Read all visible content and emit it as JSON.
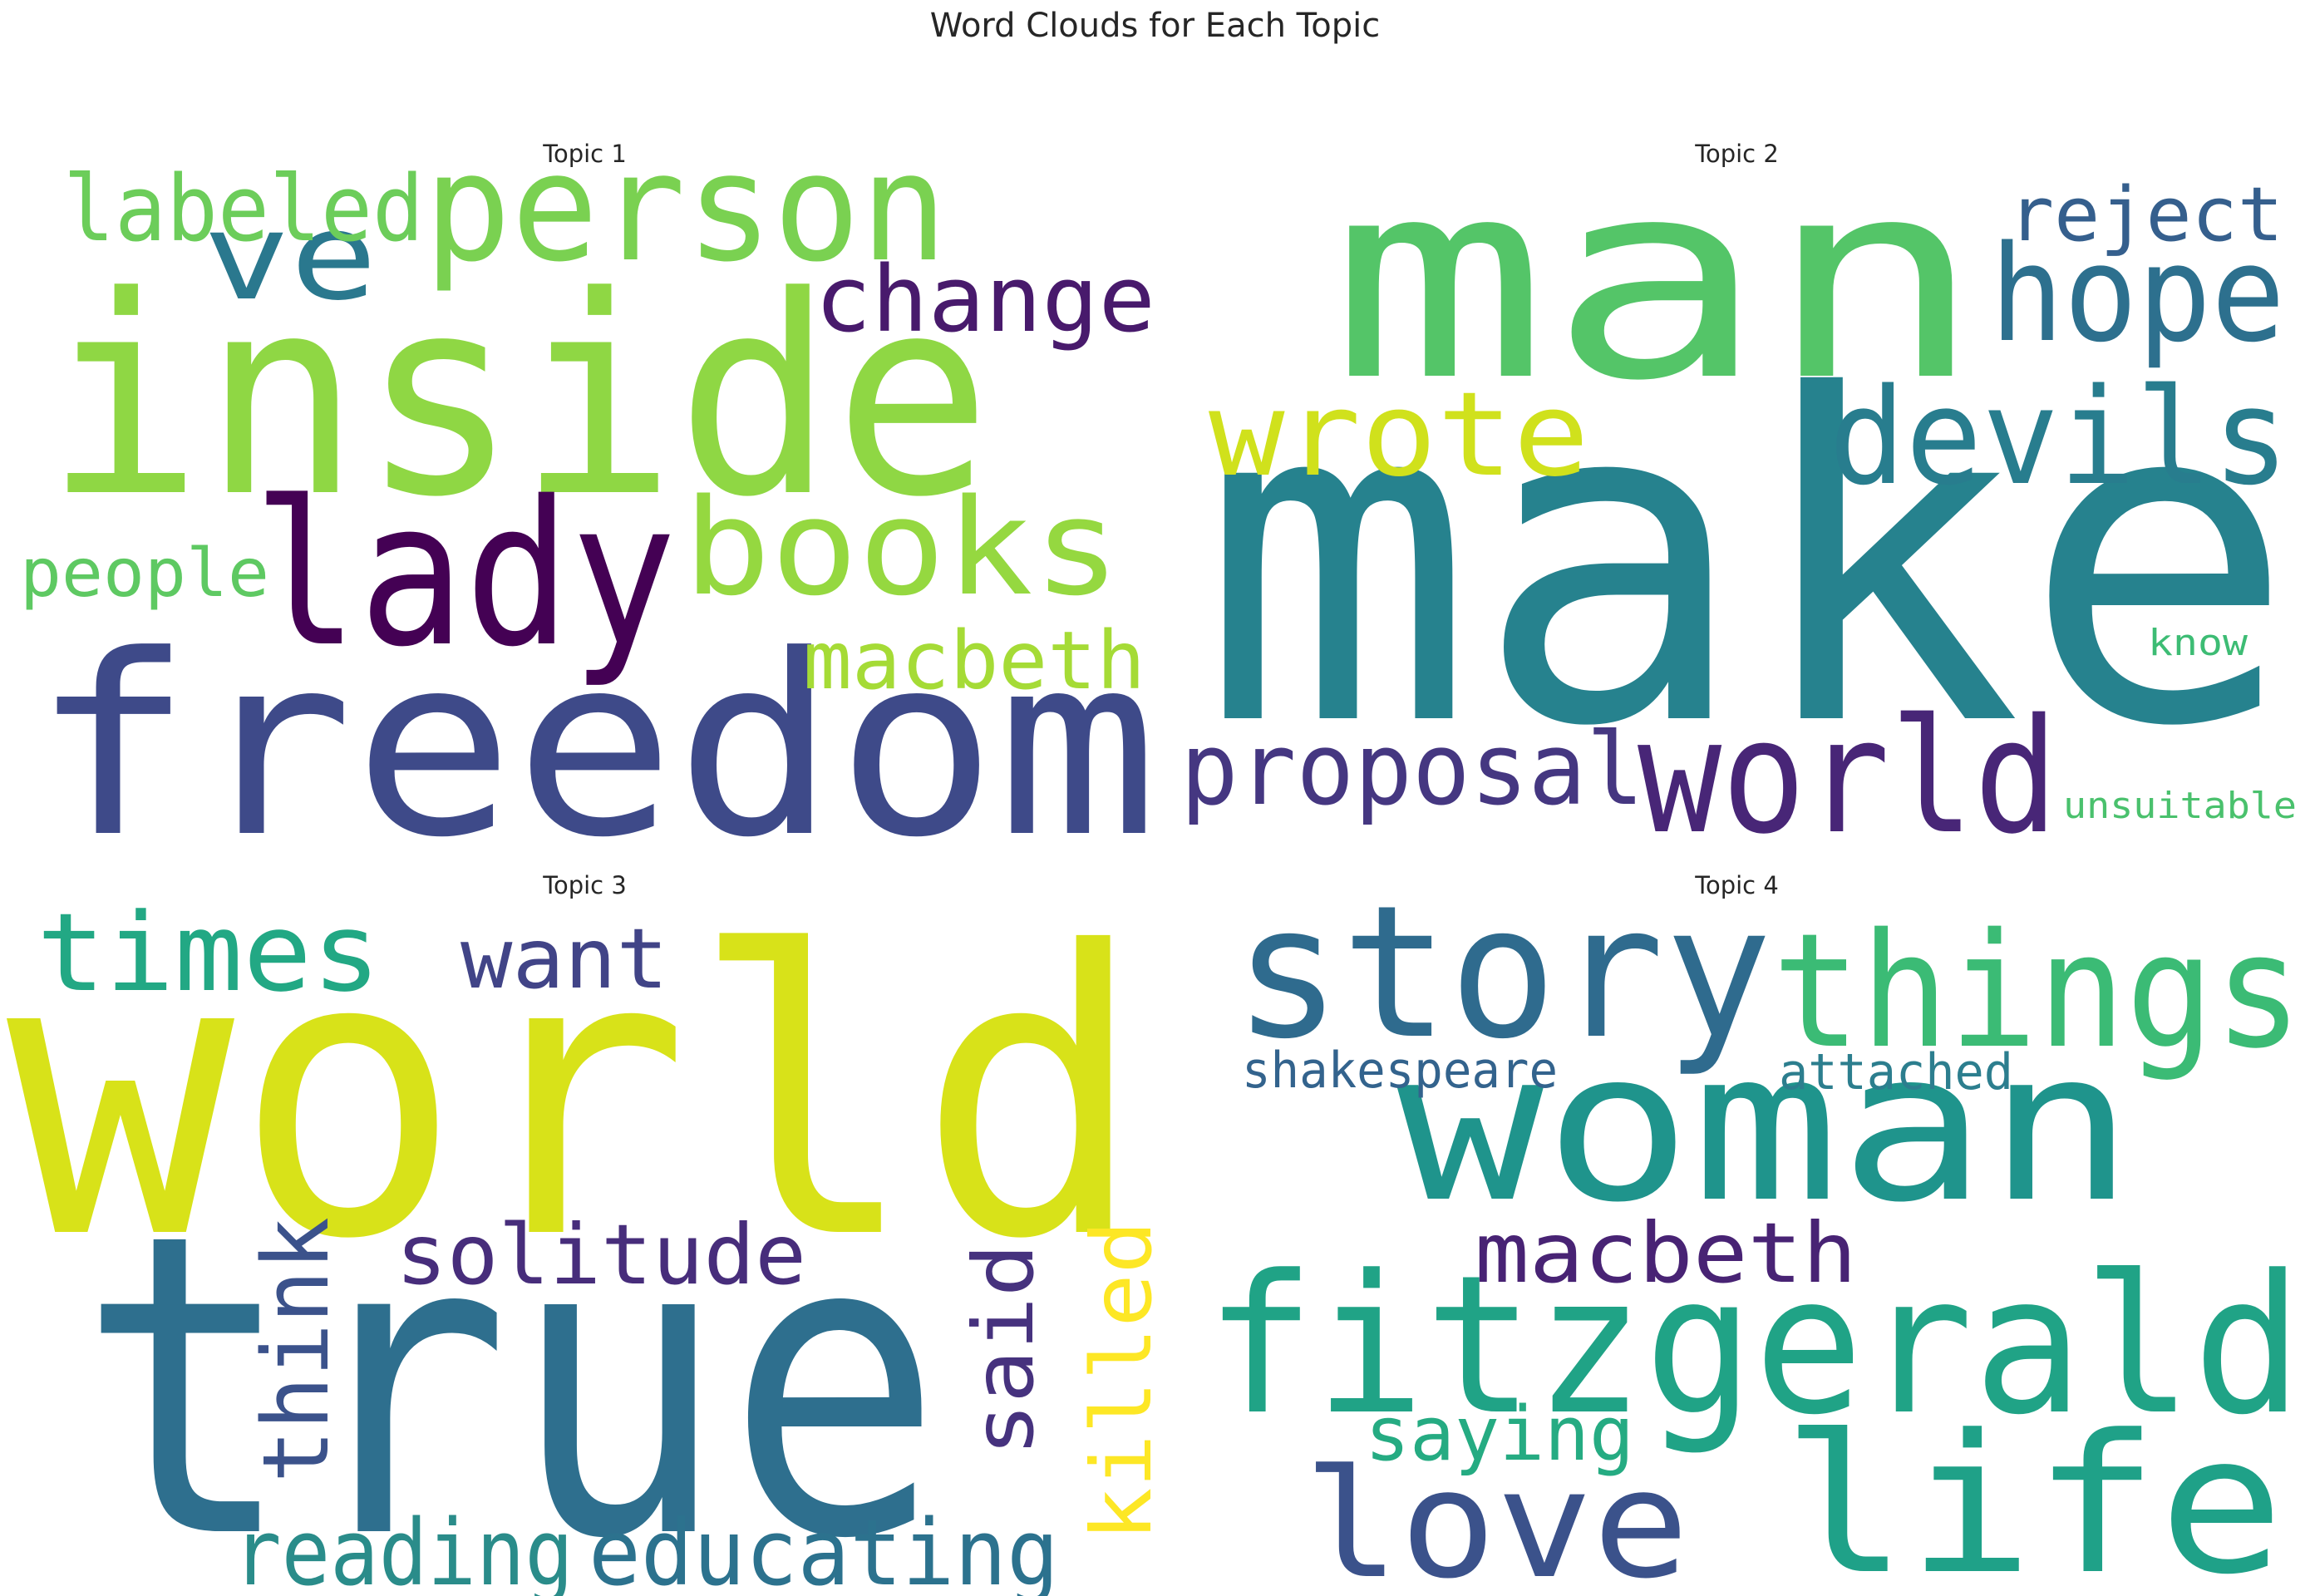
{
  "figure": {
    "title": "Word Clouds for Each Topic"
  },
  "topics": [
    {
      "label": "Topic 1",
      "words": [
        {
          "text": "inside",
          "color": "#8fd744"
        },
        {
          "text": "freedom",
          "color": "#3e4a89"
        },
        {
          "text": "lady",
          "color": "#440154"
        },
        {
          "text": "person",
          "color": "#7ad151"
        },
        {
          "text": "books",
          "color": "#95d840"
        },
        {
          "text": "ve",
          "color": "#2a788e"
        },
        {
          "text": "labeled",
          "color": "#6ccd5a"
        },
        {
          "text": "change",
          "color": "#481a6c"
        },
        {
          "text": "macbeth",
          "color": "#a5db36"
        },
        {
          "text": "people",
          "color": "#5ec962"
        }
      ]
    },
    {
      "label": "Topic 2",
      "words": [
        {
          "text": "make",
          "color": "#26828e"
        },
        {
          "text": "man",
          "color": "#54c568"
        },
        {
          "text": "world",
          "color": "#482677"
        },
        {
          "text": "hope",
          "color": "#2d708e"
        },
        {
          "text": "devils",
          "color": "#287d8e"
        },
        {
          "text": "wrote",
          "color": "#d0e11c"
        },
        {
          "text": "proposal",
          "color": "#453781"
        },
        {
          "text": "reject",
          "color": "#355f8d"
        },
        {
          "text": "know",
          "color": "#3dbc74"
        },
        {
          "text": "unsuitable",
          "color": "#4ac16d"
        }
      ]
    },
    {
      "label": "Topic 3",
      "words": [
        {
          "text": "world",
          "color": "#d8e219"
        },
        {
          "text": "true",
          "color": "#2e6f8e"
        },
        {
          "text": "times",
          "color": "#22a884"
        },
        {
          "text": "want",
          "color": "#414487"
        },
        {
          "text": "solitude",
          "color": "#472d7b"
        },
        {
          "text": "reading",
          "color": "#2a8c8a"
        },
        {
          "text": "educating",
          "color": "#2c728e"
        },
        {
          "text": "think",
          "color": "#3b528b"
        },
        {
          "text": "said",
          "color": "#46327e"
        },
        {
          "text": "killed",
          "color": "#fde725"
        }
      ]
    },
    {
      "label": "Topic 4",
      "words": [
        {
          "text": "story",
          "color": "#2f6b8e"
        },
        {
          "text": "things",
          "color": "#3bbb75"
        },
        {
          "text": "woman",
          "color": "#1f948c"
        },
        {
          "text": "fitzgerald",
          "color": "#20a386"
        },
        {
          "text": "life",
          "color": "#1fa188"
        },
        {
          "text": "love",
          "color": "#3b528b"
        },
        {
          "text": "macbeth",
          "color": "#482374"
        },
        {
          "text": "saying",
          "color": "#25ab82"
        },
        {
          "text": "shakespeare",
          "color": "#33638d"
        },
        {
          "text": "attached",
          "color": "#2c7e8e"
        }
      ]
    }
  ]
}
